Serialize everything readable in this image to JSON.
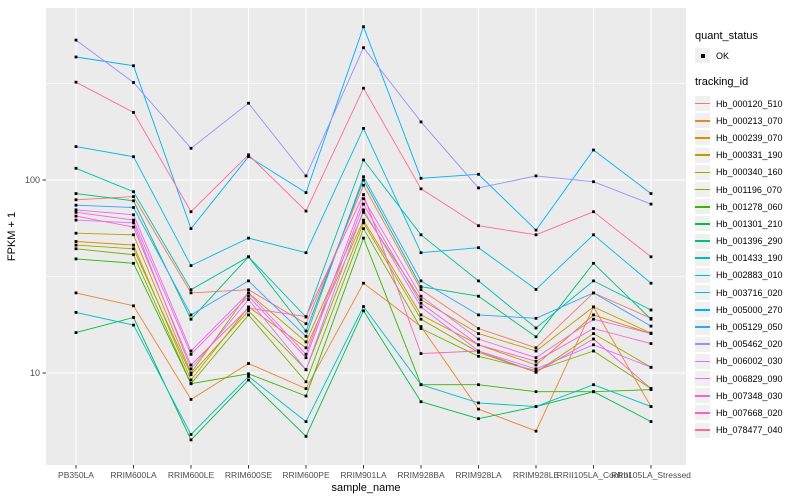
{
  "figure": {
    "x_axis": {
      "title": "sample_name"
    },
    "y_axis": {
      "title": "FPKM + 1",
      "tick_labels": [
        "100",
        "10"
      ],
      "tick_values": [
        100,
        10
      ]
    }
  },
  "legend": {
    "quant_status": {
      "title": "quant_status",
      "items": [
        {
          "label": "OK",
          "marker": "black-point"
        }
      ]
    },
    "tracking_id": {
      "title": "tracking_id"
    }
  },
  "colors": {
    "panel_bg": "#EBEBEB",
    "grid_major": "#FFFFFF",
    "grid_minor": "#FFFFFF",
    "tick_mark": "#333333",
    "tick_label": "#4D4D4D",
    "axis_title": "#000000",
    "point": "#000000",
    "legend_key_bg": "#F0F0F0"
  },
  "chart_data": {
    "type": "line",
    "title": "",
    "xlabel": "sample_name",
    "ylabel": "FPKM + 1",
    "y_scale": "log10",
    "y_breaks": [
      10,
      100
    ],
    "y_minor_breaks": [
      31.6,
      316
    ],
    "ylim": [
      3.3,
      780
    ],
    "grid": true,
    "legend_position": "right",
    "point_shape": "filled-square",
    "quant_status": "OK",
    "categories": [
      "PB350LA",
      "RRIM600LA",
      "RRIM600LE",
      "RRIM600SE",
      "RRIM600PE",
      "RRIM901LA",
      "RRIM928BA",
      "RRIM928LA",
      "RRIM928LE",
      "RRII105LA_Control",
      "RRII105LA_Stressed"
    ],
    "series": [
      {
        "name": "Hb_000120_510",
        "color": "#F8766D",
        "values": [
          79,
          82,
          26,
          27,
          18,
          94,
          27,
          17,
          13.5,
          26,
          19.2
        ]
      },
      {
        "name": "Hb_000213_070",
        "color": "#EA8331",
        "values": [
          26,
          22.3,
          7.3,
          11.2,
          8.3,
          29.2,
          17.4,
          6.5,
          5.0,
          22,
          6.7
        ]
      },
      {
        "name": "Hb_000239_070",
        "color": "#D89000",
        "values": [
          48,
          46,
          9.2,
          22,
          13.5,
          62,
          20,
          14,
          11,
          20,
          16
        ]
      },
      {
        "name": "Hb_000331_190",
        "color": "#C09B00",
        "values": [
          53,
          52,
          10,
          26,
          14.5,
          68,
          24,
          16,
          13,
          22,
          16.1
        ]
      },
      {
        "name": "Hb_000340_160",
        "color": "#A3A500",
        "values": [
          46,
          44,
          9.8,
          21,
          10.4,
          60,
          19,
          12.8,
          10.1,
          16,
          10.7
        ]
      },
      {
        "name": "Hb_001196_070",
        "color": "#7CAE00",
        "values": [
          44,
          41,
          8.8,
          20,
          9.0,
          56,
          17,
          12.2,
          10.3,
          13,
          8.3
        ]
      },
      {
        "name": "Hb_001278_060",
        "color": "#39B600",
        "values": [
          39,
          37,
          8.8,
          9.9,
          7.6,
          50,
          8.7,
          8.7,
          8.0,
          8.0,
          8.2
        ]
      },
      {
        "name": "Hb_001301_210",
        "color": "#00BB4E",
        "values": [
          16.2,
          19.4,
          4.5,
          9.2,
          4.7,
          21,
          7.1,
          5.8,
          6.7,
          8.0,
          5.6
        ]
      },
      {
        "name": "Hb_001396_290",
        "color": "#00BF7D",
        "values": [
          85,
          78,
          19,
          40,
          16.5,
          100,
          28,
          25,
          15.4,
          37,
          19
        ]
      },
      {
        "name": "Hb_001433_190",
        "color": "#00C1A3",
        "values": [
          115,
          87,
          27,
          40,
          19.5,
          127,
          52,
          30,
          17.1,
          30,
          21.2
        ]
      },
      {
        "name": "Hb_002883_010",
        "color": "#00BFC4",
        "values": [
          20.6,
          17.7,
          4.8,
          9.6,
          5.6,
          22.1,
          8.7,
          7.0,
          6.7,
          8.7,
          6.7
        ]
      },
      {
        "name": "Hb_003716_020",
        "color": "#00BAE0",
        "values": [
          149,
          132,
          36,
          50,
          42,
          185,
          42,
          44.6,
          27.1,
          52,
          29.2
        ]
      },
      {
        "name": "Hb_005000_270",
        "color": "#00B0F6",
        "values": [
          434,
          391,
          56,
          132,
          86,
          623,
          102,
          107,
          55,
          143,
          85
        ]
      },
      {
        "name": "Hb_005129_050",
        "color": "#35A2FF",
        "values": [
          74,
          72,
          20,
          30,
          15.5,
          104,
          30,
          20,
          19.2,
          26,
          17.5
        ]
      },
      {
        "name": "Hb_005462_020",
        "color": "#9590FF",
        "values": [
          531,
          320,
          146,
          250,
          105,
          485,
          200,
          91,
          105,
          98,
          75
        ]
      },
      {
        "name": "Hb_006002_030",
        "color": "#C77CFF",
        "values": [
          62,
          60,
          10.5,
          24,
          10.4,
          70,
          22,
          13,
          10.5,
          14,
          10.7
        ]
      },
      {
        "name": "Hb_006829_090",
        "color": "#E76BF3",
        "values": [
          70,
          66,
          13,
          26,
          12.5,
          80,
          25,
          15,
          12,
          19,
          16
        ]
      },
      {
        "name": "Hb_007348_030",
        "color": "#FA62DB",
        "values": [
          68,
          62,
          12.5,
          25,
          12,
          75,
          23,
          14,
          11.5,
          17,
          14.2
        ]
      },
      {
        "name": "Hb_007668_020",
        "color": "#FF62BC",
        "values": [
          65,
          57,
          11,
          21.7,
          19.6,
          84,
          12.6,
          13,
          10.1,
          15,
          8.3
        ]
      },
      {
        "name": "Hb_078477_040",
        "color": "#FF6A98",
        "values": [
          321,
          224,
          68.5,
          135,
          69,
          299,
          90,
          58,
          52,
          68.5,
          40
        ]
      }
    ]
  }
}
